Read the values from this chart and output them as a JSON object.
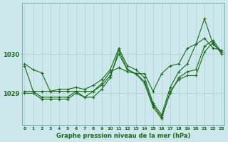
{
  "title": "Graphe pression niveau de la mer (hPa)",
  "bg_color": "#cce8ec",
  "line_color": "#1a6b1a",
  "grid_color": "#b0d0d4",
  "x_ticks": [
    0,
    1,
    2,
    3,
    4,
    5,
    6,
    7,
    8,
    9,
    10,
    11,
    12,
    13,
    14,
    15,
    16,
    17,
    18,
    19,
    20,
    21,
    22,
    23
  ],
  "ylim": [
    1028.2,
    1031.3
  ],
  "yticks": [
    1029,
    1030
  ],
  "series": [
    [
      1029.75,
      1029.6,
      1029.52,
      1029.05,
      1029.05,
      1029.05,
      1029.05,
      1029.05,
      1029.05,
      1029.25,
      1029.55,
      1029.65,
      1029.55,
      1029.5,
      1029.5,
      1029.05,
      1029.5,
      1029.7,
      1029.75,
      1030.15,
      1030.25,
      1030.9,
      1030.25,
      1030.05
    ],
    [
      1029.0,
      1029.0,
      1028.85,
      1028.85,
      1028.85,
      1028.85,
      1029.0,
      1028.9,
      1028.9,
      1029.1,
      1029.4,
      1030.1,
      1029.6,
      1029.5,
      1029.25,
      1028.65,
      1028.35,
      1029.05,
      1029.35,
      1029.45,
      1029.45,
      1030.05,
      1030.3,
      1030.0
    ],
    [
      1029.05,
      1029.05,
      1028.9,
      1028.9,
      1028.9,
      1028.9,
      1029.05,
      1028.9,
      1029.05,
      1029.2,
      1029.45,
      1030.0,
      1029.6,
      1029.5,
      1029.3,
      1028.7,
      1028.4,
      1029.0,
      1029.4,
      1029.55,
      1029.6,
      1030.2,
      1030.35,
      1030.05
    ],
    [
      1029.7,
      1029.05,
      1029.05,
      1029.05,
      1029.1,
      1029.1,
      1029.15,
      1029.1,
      1029.2,
      1029.35,
      1029.6,
      1030.15,
      1029.7,
      1029.6,
      1029.4,
      1028.75,
      1028.45,
      1029.15,
      1029.55,
      1029.75,
      1030.25,
      1030.4,
      1030.15,
      1030.1
    ]
  ]
}
